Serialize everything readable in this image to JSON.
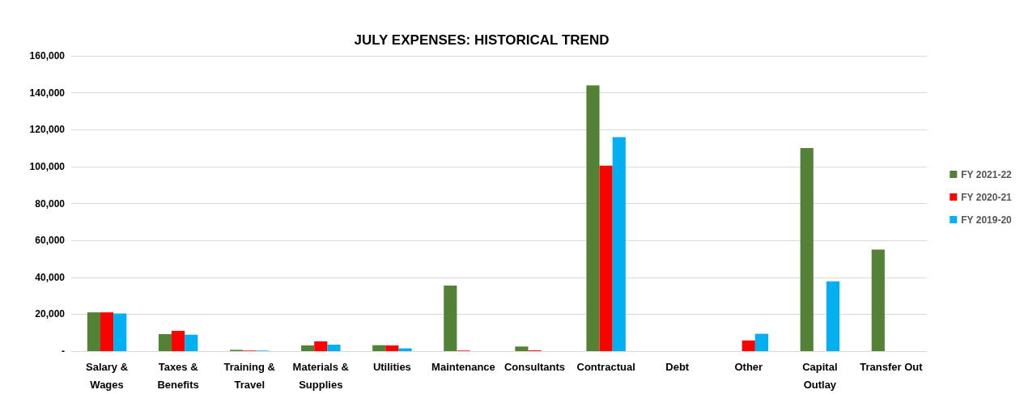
{
  "chart_data": {
    "type": "bar",
    "title": "JULY EXPENSES: HISTORICAL TREND",
    "categories": [
      "Salary & Wages",
      "Taxes & Benefits",
      "Training & Travel",
      "Materials & Supplies",
      "Utilities",
      "Maintenance",
      "Consultants",
      "Contractual",
      "Debt",
      "Other",
      "Capital Outlay",
      "Transfer Out"
    ],
    "series": [
      {
        "name": "FY 2021-22",
        "color": "#538135",
        "values": [
          21000,
          9200,
          700,
          3100,
          3200,
          35500,
          2500,
          144000,
          null,
          null,
          110000,
          55000
        ]
      },
      {
        "name": "FY 2020-21",
        "color": "#ff0000",
        "values": [
          21000,
          11000,
          300,
          5300,
          3100,
          300,
          400,
          100500,
          null,
          5800,
          null,
          null
        ]
      },
      {
        "name": "FY 2019-20",
        "color": "#00b0f0",
        "values": [
          20400,
          8900,
          300,
          3500,
          1500,
          null,
          null,
          116000,
          null,
          9400,
          37800,
          null
        ]
      }
    ],
    "ylim": [
      0,
      160000
    ],
    "yticks": [
      {
        "value": 0,
        "label": "-"
      },
      {
        "value": 20000,
        "label": "20,000"
      },
      {
        "value": 40000,
        "label": "40,000"
      },
      {
        "value": 60000,
        "label": "60,000"
      },
      {
        "value": 80000,
        "label": "80,000"
      },
      {
        "value": 100000,
        "label": "100,000"
      },
      {
        "value": 120000,
        "label": "120,000"
      },
      {
        "value": 140000,
        "label": "140,000"
      },
      {
        "value": 160000,
        "label": "160,000"
      }
    ],
    "grid": "y",
    "legend": "right"
  }
}
